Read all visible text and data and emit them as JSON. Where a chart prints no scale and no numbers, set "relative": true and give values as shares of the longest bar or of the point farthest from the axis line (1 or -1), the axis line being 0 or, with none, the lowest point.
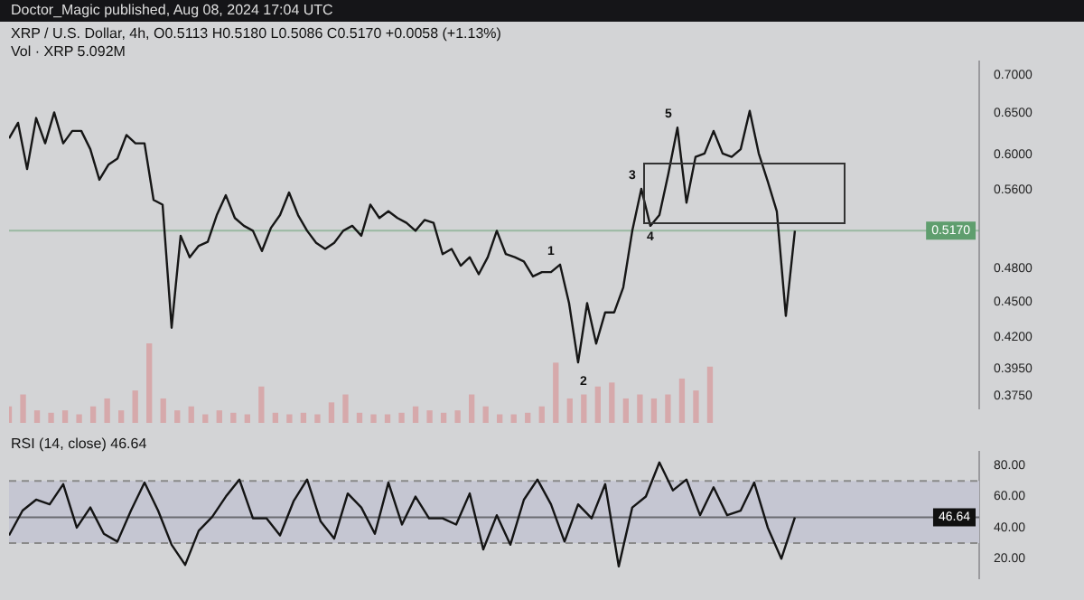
{
  "chart_data": [
    {
      "type": "line",
      "title": "XRP / U.S. Dollar, 4h, O0.5113 H0.5180 L0.5086 C0.5170 +0.0058 (+1.13%)",
      "annotations": [
        "Doctor_Magic published, Aug 08, 2024 17:04 UTC",
        "1",
        "2",
        "3",
        "4",
        "5"
      ],
      "log": "y",
      "ylim": [
        0.366,
        0.719
      ],
      "tick_labels": "y",
      "categories": [
        null,
        null,
        null,
        null,
        null,
        null,
        null,
        null,
        null,
        null,
        null,
        null,
        null,
        null,
        null,
        null,
        null,
        null,
        null,
        null,
        null,
        null,
        null,
        null,
        null,
        null,
        null,
        null,
        null,
        null,
        null,
        null,
        null,
        null,
        null,
        null,
        null,
        null,
        null,
        null,
        null,
        null,
        null,
        null,
        null,
        null,
        null,
        null,
        null,
        null,
        null,
        null,
        null,
        null,
        null,
        null,
        null,
        null,
        null,
        null,
        null,
        null,
        null,
        null,
        null,
        null,
        null,
        null,
        null,
        null,
        null,
        null,
        null,
        null,
        null,
        null,
        null,
        null,
        null,
        null,
        null,
        null,
        null,
        null,
        null,
        null,
        null,
        null
      ],
      "yticks": [
        {
          "value": 0.7,
          "label": "0.7000"
        },
        {
          "value": 0.65,
          "label": "0.6500"
        },
        {
          "value": 0.6,
          "label": "0.6000"
        },
        {
          "value": 0.56,
          "label": "0.5600"
        },
        {
          "value": 0.48,
          "label": "0.4800"
        },
        {
          "value": 0.45,
          "label": "0.4500"
        },
        {
          "value": 0.42,
          "label": "0.4200"
        },
        {
          "value": 0.395,
          "label": "0.3950"
        },
        {
          "value": 0.375,
          "label": "0.3750"
        }
      ],
      "ref_lines": [
        {
          "axis": "y",
          "value": 0.517,
          "label": "0.5170",
          "color": "#5f9e6e"
        }
      ],
      "series": [
        {
          "color": "#161616",
          "values": [
            0.619,
            0.638,
            0.583,
            0.644,
            0.613,
            0.651,
            0.613,
            0.628,
            0.628,
            0.606,
            0.571,
            0.588,
            0.595,
            0.623,
            0.613,
            0.613,
            0.549,
            0.544,
            0.428,
            0.512,
            0.491,
            0.502,
            0.506,
            0.533,
            0.554,
            0.53,
            0.522,
            0.517,
            0.497,
            0.52,
            0.533,
            0.557,
            0.533,
            0.517,
            0.505,
            0.499,
            0.505,
            0.517,
            0.522,
            0.512,
            0.544,
            0.53,
            0.537,
            0.53,
            0.525,
            0.517,
            0.528,
            0.525,
            0.494,
            0.499,
            0.483,
            0.491,
            0.475,
            0.491,
            0.517,
            0.494,
            0.491,
            0.487,
            0.473,
            0.477,
            0.477,
            0.484,
            0.449,
            0.4,
            0.449,
            0.415,
            0.441,
            0.441,
            0.463,
            0.517,
            0.561,
            0.522,
            0.533,
            0.578,
            0.632,
            0.546,
            0.597,
            0.601,
            0.628,
            0.601,
            0.597,
            0.606,
            0.653,
            0.601,
            0.569,
            0.537,
            0.438,
            0.517
          ]
        }
      ]
    },
    {
      "type": "bar",
      "title": "Vol · XRP 5.092M",
      "relative": true,
      "tick_labels": false,
      "categories": [
        null,
        null,
        null,
        null,
        null,
        null,
        null,
        null,
        null,
        null,
        null,
        null,
        null,
        null,
        null,
        null,
        null,
        null,
        null,
        null,
        null,
        null,
        null,
        null,
        null,
        null,
        null,
        null,
        null,
        null,
        null,
        null,
        null,
        null,
        null,
        null,
        null,
        null,
        null,
        null,
        null,
        null,
        null,
        null,
        null,
        null,
        null,
        null,
        null,
        null,
        null
      ],
      "series": [
        {
          "color": "#d6a9ab",
          "values": [
            0.2,
            0.35,
            0.15,
            0.12,
            0.15,
            0.1,
            0.2,
            0.3,
            0.15,
            0.4,
            1.0,
            0.3,
            0.15,
            0.2,
            0.1,
            0.15,
            0.12,
            0.1,
            0.45,
            0.12,
            0.1,
            0.12,
            0.1,
            0.25,
            0.35,
            0.12,
            0.1,
            0.1,
            0.12,
            0.2,
            0.15,
            0.12,
            0.15,
            0.35,
            0.2,
            0.1,
            0.1,
            0.12,
            0.2,
            0.75,
            0.3,
            0.35,
            0.45,
            0.5,
            0.3,
            0.35,
            0.3,
            0.35,
            0.55,
            0.4,
            0.7
          ]
        }
      ]
    },
    {
      "type": "line",
      "title": "RSI (14, close) 46.64",
      "ylim": [
        7.6,
        88.6
      ],
      "tick_labels": "y",
      "categories": [
        null,
        null,
        null,
        null,
        null,
        null,
        null,
        null,
        null,
        null,
        null,
        null,
        null,
        null,
        null,
        null,
        null,
        null,
        null,
        null,
        null,
        null,
        null,
        null,
        null,
        null,
        null,
        null,
        null,
        null,
        null,
        null,
        null,
        null,
        null,
        null,
        null,
        null,
        null,
        null,
        null,
        null,
        null,
        null,
        null,
        null,
        null,
        null,
        null,
        null,
        null,
        null,
        null,
        null,
        null,
        null,
        null,
        null,
        null
      ],
      "yticks": [
        {
          "value": 80,
          "label": "80.00"
        },
        {
          "value": 60,
          "label": "60.00"
        },
        {
          "value": 40,
          "label": "40.00"
        },
        {
          "value": 20,
          "label": "20.00"
        }
      ],
      "bands": [
        {
          "axis": "y",
          "from": 30,
          "to": 70,
          "color": "#c5c6d2"
        }
      ],
      "ref_lines": [
        {
          "axis": "y",
          "value": 70,
          "line_style": "dashed",
          "color": "#8a8a8a"
        },
        {
          "axis": "y",
          "value": 30,
          "line_style": "dashed",
          "color": "#8a8a8a"
        },
        {
          "axis": "y",
          "value": 46.64,
          "label": "46.64",
          "color": "#111111"
        }
      ],
      "series": [
        {
          "color": "#141414",
          "values": [
            35,
            51,
            58,
            55,
            68,
            40,
            53,
            36,
            31,
            51,
            69,
            51,
            29,
            16,
            38,
            47,
            60,
            71,
            46,
            46,
            35,
            57,
            71,
            44,
            33,
            62,
            53,
            36,
            69,
            42,
            60,
            46,
            46,
            42,
            62,
            26,
            48,
            29,
            58,
            71,
            55,
            31,
            55,
            46,
            68,
            15,
            53,
            60,
            82,
            64,
            71,
            48,
            66,
            48,
            51,
            69,
            40,
            20,
            46.64
          ]
        }
      ]
    }
  ]
}
